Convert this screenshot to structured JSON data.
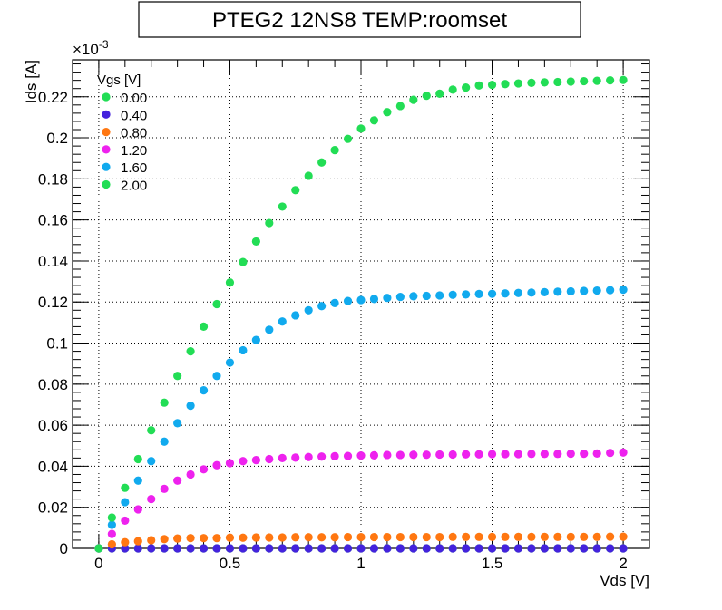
{
  "chart_data": {
    "type": "scatter",
    "title": "PTEG2 12NS8 TEMP:roomset",
    "xlabel": "Vds [V]",
    "ylabel": "Ids [A]",
    "yexponent": "×10",
    "yexponent_power": "-3",
    "xlim": [
      -0.1,
      2.1
    ],
    "ylim": [
      0,
      0.238
    ],
    "xticks": [
      0,
      0.5,
      1,
      1.5,
      2
    ],
    "xtick_labels": [
      "0",
      "0.5",
      "1",
      "1.5",
      "2"
    ],
    "yticks": [
      0,
      0.02,
      0.04,
      0.06,
      0.08,
      0.1,
      0.12,
      0.14,
      0.16,
      0.18,
      0.2,
      0.22
    ],
    "ytick_labels": [
      "0",
      "0.02",
      "0.04",
      "0.06",
      "0.08",
      "0.1",
      "0.12",
      "0.14",
      "0.16",
      "0.18",
      "0.2",
      "0.22"
    ],
    "grid": true,
    "legend_title": "Vgs [V]",
    "legend_position": "top-left",
    "x": [
      0,
      0.05,
      0.1,
      0.15,
      0.2,
      0.25,
      0.3,
      0.35,
      0.4,
      0.45,
      0.5,
      0.55,
      0.6,
      0.65,
      0.7,
      0.75,
      0.8,
      0.85,
      0.9,
      0.95,
      1.0,
      1.05,
      1.1,
      1.15,
      1.2,
      1.25,
      1.3,
      1.35,
      1.4,
      1.45,
      1.5,
      1.55,
      1.6,
      1.65,
      1.7,
      1.75,
      1.8,
      1.85,
      1.9,
      1.95,
      2.0
    ],
    "series": [
      {
        "name": "0.00",
        "color": "#22dd55",
        "values": [
          0,
          0,
          0,
          0,
          0,
          0,
          0,
          0,
          0,
          0,
          0,
          0,
          0,
          0,
          0,
          0,
          0,
          0,
          0,
          0,
          0,
          0,
          0,
          0,
          0,
          0,
          0,
          0,
          0,
          0,
          0,
          0,
          0,
          0,
          0,
          0,
          0,
          0,
          0,
          0,
          0
        ]
      },
      {
        "name": "0.40",
        "color": "#4422dd",
        "values": [
          0,
          0,
          0,
          0,
          0,
          0,
          0,
          0,
          0,
          0,
          0,
          0,
          0,
          0,
          0,
          0,
          0,
          0,
          0,
          0,
          0,
          0,
          0,
          0,
          0,
          0,
          0,
          0,
          0,
          0,
          0,
          0,
          0,
          0,
          0,
          0,
          0,
          0,
          0,
          0,
          0
        ]
      },
      {
        "name": "0.80",
        "color": "#ff7711",
        "values": [
          0,
          0.002,
          0.003,
          0.0035,
          0.004,
          0.0045,
          0.0048,
          0.005,
          0.005,
          0.005,
          0.0052,
          0.0052,
          0.0053,
          0.0053,
          0.0053,
          0.0054,
          0.0054,
          0.0054,
          0.0054,
          0.0055,
          0.0055,
          0.0055,
          0.0055,
          0.0055,
          0.0055,
          0.0055,
          0.0055,
          0.0056,
          0.0056,
          0.0056,
          0.0056,
          0.0056,
          0.0056,
          0.0056,
          0.0056,
          0.0056,
          0.0056,
          0.0056,
          0.0056,
          0.0057,
          0.0057
        ]
      },
      {
        "name": "1.20",
        "color": "#ee22ee",
        "values": [
          0,
          0.007,
          0.0135,
          0.019,
          0.024,
          0.029,
          0.033,
          0.036,
          0.0385,
          0.0405,
          0.0415,
          0.0425,
          0.043,
          0.0435,
          0.044,
          0.0442,
          0.0445,
          0.0447,
          0.0449,
          0.045,
          0.0452,
          0.0453,
          0.0455,
          0.0455,
          0.0456,
          0.0456,
          0.0457,
          0.0457,
          0.0458,
          0.0458,
          0.0459,
          0.0459,
          0.0459,
          0.046,
          0.046,
          0.046,
          0.0461,
          0.0461,
          0.0462,
          0.0465,
          0.0467
        ]
      },
      {
        "name": "1.60",
        "color": "#11aaee",
        "values": [
          0,
          0.0115,
          0.0225,
          0.033,
          0.0425,
          0.052,
          0.061,
          0.0695,
          0.077,
          0.084,
          0.0905,
          0.0965,
          0.1015,
          0.1065,
          0.1105,
          0.1135,
          0.116,
          0.118,
          0.1195,
          0.1205,
          0.121,
          0.1215,
          0.122,
          0.1225,
          0.1228,
          0.123,
          0.1232,
          0.1235,
          0.1237,
          0.1239,
          0.124,
          0.1242,
          0.1244,
          0.1246,
          0.1248,
          0.125,
          0.1252,
          0.1254,
          0.1256,
          0.1258,
          0.126
        ]
      },
      {
        "name": "2.00",
        "color": "#22dd55",
        "values": [
          0,
          0.015,
          0.0295,
          0.0435,
          0.0575,
          0.071,
          0.084,
          0.096,
          0.108,
          0.119,
          0.1295,
          0.1395,
          0.1495,
          0.1585,
          0.1665,
          0.1745,
          0.1815,
          0.188,
          0.194,
          0.1995,
          0.2045,
          0.2085,
          0.2125,
          0.2155,
          0.2185,
          0.2205,
          0.2215,
          0.2235,
          0.2245,
          0.2255,
          0.2258,
          0.2262,
          0.2265,
          0.2268,
          0.227,
          0.2272,
          0.2274,
          0.2276,
          0.2278,
          0.228,
          0.2282
        ]
      }
    ]
  }
}
